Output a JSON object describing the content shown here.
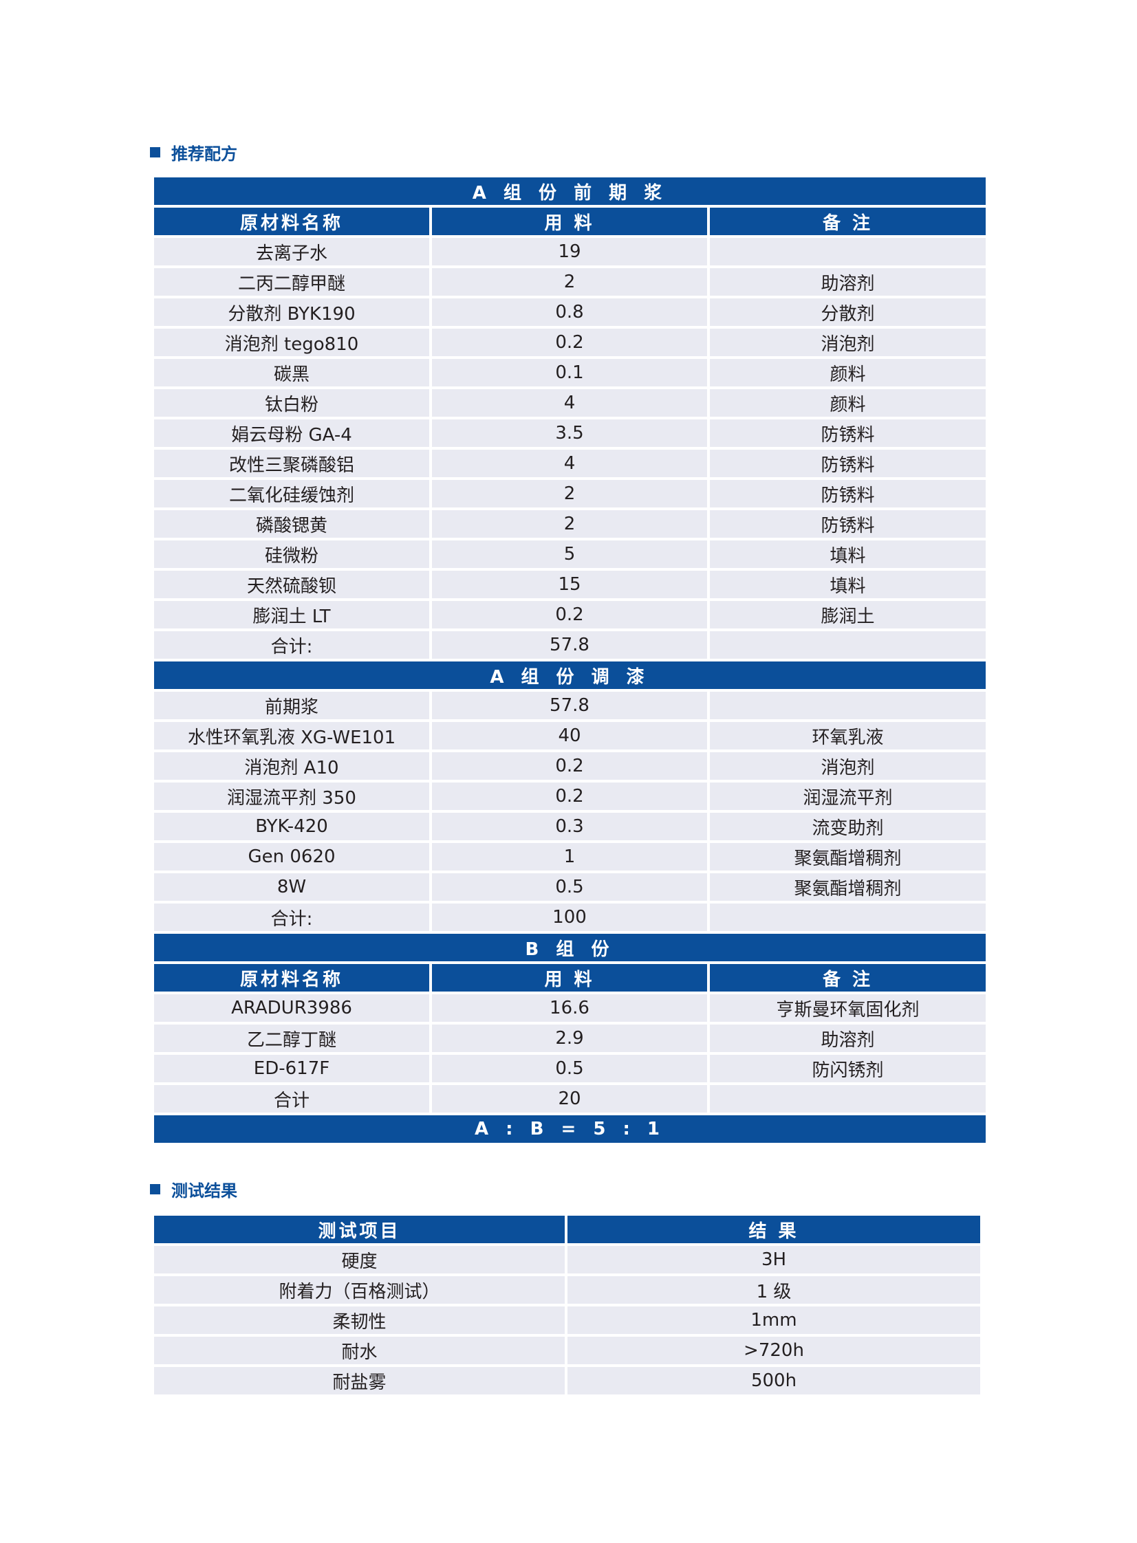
{
  "section1_title": "推荐配方",
  "section2_title": "测试结果",
  "colors": {
    "accent": "#0b4f9a",
    "row_bg": "#e9eaf2"
  },
  "formula": {
    "a_premix_title": "A 组 份 前 期 浆",
    "headers": [
      "原材料名称",
      "用 料",
      "备 注"
    ],
    "a_premix_rows": [
      [
        "去离子水",
        "19",
        ""
      ],
      [
        "二丙二醇甲醚",
        "2",
        "助溶剂"
      ],
      [
        "分散剂 BYK190",
        "0.8",
        "分散剂"
      ],
      [
        "消泡剂 tego810",
        "0.2",
        "消泡剂"
      ],
      [
        "碳黑",
        "0.1",
        "颜料"
      ],
      [
        "钛白粉",
        "4",
        "颜料"
      ],
      [
        "娟云母粉 GA-4",
        "3.5",
        "防锈料"
      ],
      [
        "改性三聚磷酸铝",
        "4",
        "防锈料"
      ],
      [
        "二氧化硅缓蚀剂",
        "2",
        "防锈料"
      ],
      [
        "磷酸锶黄",
        "2",
        "防锈料"
      ],
      [
        "硅微粉",
        "5",
        "填料"
      ],
      [
        "天然硫酸钡",
        "15",
        "填料"
      ],
      [
        "膨润土 LT",
        "0.2",
        "膨润土"
      ],
      [
        "合计:",
        "57.8",
        ""
      ]
    ],
    "a_letdown_title": "A 组 份 调 漆",
    "a_letdown_rows": [
      [
        "前期浆",
        "57.8",
        ""
      ],
      [
        "水性环氧乳液 XG-WE101",
        "40",
        "环氧乳液"
      ],
      [
        "消泡剂 A10",
        "0.2",
        "消泡剂"
      ],
      [
        "润湿流平剂 350",
        "0.2",
        "润湿流平剂"
      ],
      [
        "BYK-420",
        "0.3",
        "流变助剂"
      ],
      [
        "Gen 0620",
        "1",
        "聚氨酯增稠剂"
      ],
      [
        "8W",
        "0.5",
        "聚氨酯增稠剂"
      ],
      [
        "合计:",
        "100",
        ""
      ]
    ],
    "b_title": "B 组 份",
    "b_rows": [
      [
        "ARADUR3986",
        "16.6",
        "亨斯曼环氧固化剂"
      ],
      [
        "乙二醇丁醚",
        "2.9",
        "助溶剂"
      ],
      [
        "ED-617F",
        "0.5",
        "防闪锈剂"
      ],
      [
        "合计",
        "20",
        ""
      ]
    ],
    "ratio": "A : B = 5 : 1"
  },
  "results": {
    "headers": [
      "测试项目",
      "结 果"
    ],
    "rows": [
      [
        "硬度",
        "3H"
      ],
      [
        "附着力（百格测试）",
        "1 级"
      ],
      [
        "柔韧性",
        "1mm"
      ],
      [
        "耐水",
        ">720h"
      ],
      [
        "耐盐雾",
        "500h"
      ]
    ]
  }
}
